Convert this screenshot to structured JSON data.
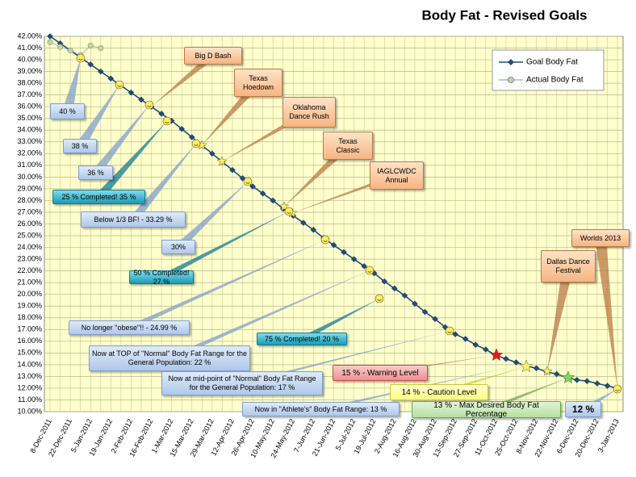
{
  "chart_data": {
    "type": "line",
    "title": "Body Fat - Revised Goals",
    "categories": [
      "8-Dec-2011",
      null,
      "22-Dec-2011",
      null,
      "5-Jan-2012",
      null,
      "19-Jan-2012",
      null,
      "2-Feb-2012",
      null,
      "16-Feb-2012",
      null,
      "1-Mar-2012",
      null,
      "15-Mar-2012",
      null,
      "29-Mar-2012",
      null,
      "12-Apr-2012",
      null,
      "26-Apr-2012",
      null,
      "10-May-2012",
      null,
      "24-May-2012",
      null,
      "7-Jun-2012",
      null,
      "21-Jun-2012",
      null,
      "5-Jul-2012",
      null,
      "19-Jul-2012",
      null,
      "2-Aug-2012",
      null,
      "16-Aug-2012",
      null,
      "30-Aug-2012",
      null,
      "13-Sep-2012",
      null,
      "27-Sep-2012",
      null,
      "11-Oct-2012",
      null,
      "25-Oct-2012",
      null,
      "8-Nov-2012",
      null,
      "22-Nov-2012",
      null,
      "6-Dec-2012",
      null,
      "20-Dec-2012",
      null,
      "3-Jan-2013"
    ],
    "series": [
      {
        "name": "Goal Body Fat",
        "color": "#1f4e79",
        "values": [
          42.0,
          41.4,
          40.8,
          40.2,
          39.6,
          39.0,
          38.4,
          37.8,
          37.2,
          36.6,
          36.0,
          35.4,
          34.8,
          34.1,
          33.4,
          32.7,
          32.0,
          31.3,
          30.6,
          29.9,
          29.2,
          28.6,
          28.0,
          27.3,
          26.7,
          26.1,
          25.5,
          24.8,
          24.2,
          23.6,
          23.0,
          22.4,
          21.8,
          21.1,
          20.5,
          19.9,
          19.2,
          18.5,
          17.9,
          17.2,
          16.6,
          16.2,
          15.7,
          15.3,
          14.8,
          14.5,
          14.2,
          13.9,
          13.7,
          13.4,
          13.2,
          12.9,
          12.7,
          12.6,
          12.4,
          12.2,
          12.0
        ]
      },
      {
        "name": "Actual Body Fat",
        "color": "#c4d79b",
        "values": [
          41.5,
          41.1,
          40.8,
          40.4,
          41.2,
          41.0,
          null,
          null,
          null,
          null,
          null,
          null,
          null,
          null,
          null,
          null,
          null,
          null,
          null,
          null,
          null,
          null,
          null,
          null,
          null,
          null,
          null,
          null,
          null,
          null,
          null,
          null,
          null,
          null,
          null,
          null,
          null,
          null,
          null,
          null,
          null,
          null,
          null,
          null,
          null,
          null,
          null,
          null,
          null,
          null,
          null,
          null,
          null,
          null,
          null,
          null,
          null
        ]
      }
    ],
    "ylim": [
      10,
      42
    ],
    "yticks": [
      {
        "value": 10,
        "label": "10.00%"
      },
      {
        "value": 11,
        "label": "11.00%"
      },
      {
        "value": 12,
        "label": "12.00%"
      },
      {
        "value": 13,
        "label": "13.00%"
      },
      {
        "value": 14,
        "label": "14.00%"
      },
      {
        "value": 15,
        "label": "15.00%"
      },
      {
        "value": 16,
        "label": "16.00%"
      },
      {
        "value": 17,
        "label": "17.00%"
      },
      {
        "value": 18,
        "label": "18.00%"
      },
      {
        "value": 19,
        "label": "19.00%"
      },
      {
        "value": 20,
        "label": "20.00%"
      },
      {
        "value": 21,
        "label": "21.00%"
      },
      {
        "value": 22,
        "label": "22.00%"
      },
      {
        "value": 23,
        "label": "23.00%"
      },
      {
        "value": 24,
        "label": "24.00%"
      },
      {
        "value": 25,
        "label": "25.00%"
      },
      {
        "value": 26,
        "label": "26.00%"
      },
      {
        "value": 27,
        "label": "27.00%"
      },
      {
        "value": 28,
        "label": "28.00%"
      },
      {
        "value": 29,
        "label": "29.00%"
      },
      {
        "value": 30,
        "label": "30.00%"
      },
      {
        "value": 31,
        "label": "31.00%"
      },
      {
        "value": 32,
        "label": "32.00%"
      },
      {
        "value": 33,
        "label": "33.00%"
      },
      {
        "value": 34,
        "label": "34.00%"
      },
      {
        "value": 35,
        "label": "35.00%"
      },
      {
        "value": 36,
        "label": "36.00%"
      },
      {
        "value": 37,
        "label": "37.00%"
      },
      {
        "value": 38,
        "label": "38.00%"
      },
      {
        "value": 39,
        "label": "39.00%"
      },
      {
        "value": 40,
        "label": "40.00%"
      },
      {
        "value": 41,
        "label": "41.00%"
      },
      {
        "value": 42,
        "label": "42.00%"
      }
    ],
    "grid": true,
    "legend": "top-right",
    "annotations": [
      "Big D Bash",
      "Texas Hoedown",
      "Oklahoma Dance Rush",
      "Texas Classic",
      "IAGLCWDC Annual",
      "Worlds 2013",
      "Dallas Dance Festival",
      "40 %",
      "38 %",
      "36 %",
      "25 % Completed! 35 %",
      "Below 1/3 BF! - 33.29 %",
      "30%",
      "50 % Completed! 27 %",
      "No longer \"obese\"!! - 24.99 %",
      "75 % Completed! 20 %",
      "Now at TOP of \"Normal\" Body Fat Range for the General Population:  22 %",
      "Now at mid-point of \"Normal\" Body Fat Range for the General Population:  17 %",
      "Now in \"Athlete's\" Body Fat Range: 13 %",
      "15 % - Warning  Level",
      "14 % - Caution  Level",
      "13 % - Max Desired  Body Fat Percentage",
      "12 %"
    ]
  }
}
